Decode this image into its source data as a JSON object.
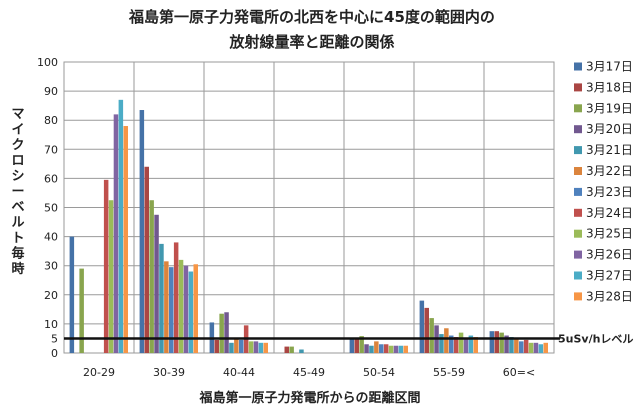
{
  "chart_data": {
    "type": "bar",
    "title": [
      "福島第一原子力発電所の北西を中心に45度の範囲内の",
      "放射線量率と距離の関係"
    ],
    "xlabel": "福島第一原子力発電所からの距離区間",
    "ylabel": "マイクロシーベルト毎時",
    "ylim": [
      0,
      100
    ],
    "yticks": [
      0,
      5,
      10,
      20,
      30,
      40,
      50,
      60,
      70,
      80,
      90,
      100
    ],
    "grid": true,
    "legend_position": "right",
    "categories": [
      "20-29",
      "30-39",
      "40-44",
      "45-49",
      "50-54",
      "55-59",
      "60=<"
    ],
    "reference_line": {
      "value": 5,
      "label": "5uSv/hレベル"
    },
    "series": [
      {
        "name": "3月17日",
        "color": "#4572a7",
        "values": [
          40,
          83.5,
          10.5,
          0,
          5,
          18,
          7.5
        ]
      },
      {
        "name": "3月18日",
        "color": "#aa4643",
        "values": [
          0,
          64,
          4.5,
          2.2,
          5,
          15.5,
          7.5
        ]
      },
      {
        "name": "3月19日",
        "color": "#89a54e",
        "values": [
          29,
          52.5,
          13.5,
          2.2,
          5.8,
          12,
          7
        ]
      },
      {
        "name": "3月20日",
        "color": "#71588f",
        "values": [
          0,
          47.5,
          14,
          0,
          3,
          9.5,
          6
        ]
      },
      {
        "name": "3月21日",
        "color": "#4198af",
        "values": [
          0,
          37.5,
          3.5,
          1.2,
          2.5,
          6.5,
          5.5
        ]
      },
      {
        "name": "3月22日",
        "color": "#db843d",
        "values": [
          0,
          31.5,
          5,
          0,
          4,
          8.5,
          5
        ]
      },
      {
        "name": "3月23日",
        "color": "#4f81bd",
        "values": [
          0,
          29.5,
          4.5,
          0,
          3,
          6,
          4
        ]
      },
      {
        "name": "3月24日",
        "color": "#c0504d",
        "values": [
          59.5,
          38,
          9.5,
          0,
          3,
          5.5,
          4.5
        ]
      },
      {
        "name": "3月25日",
        "color": "#9bbb59",
        "values": [
          52.5,
          32,
          4,
          0,
          2.5,
          7,
          3.5
        ]
      },
      {
        "name": "3月26日",
        "color": "#8064a2",
        "values": [
          82,
          30,
          4,
          0,
          2.5,
          5,
          3.5
        ]
      },
      {
        "name": "3月27日",
        "color": "#4bacc6",
        "values": [
          87,
          28,
          3.5,
          0,
          2.5,
          6,
          3
        ]
      },
      {
        "name": "3月28日",
        "color": "#f79646",
        "values": [
          78,
          30.5,
          3.5,
          0,
          2.5,
          5.5,
          3.5
        ]
      }
    ]
  }
}
